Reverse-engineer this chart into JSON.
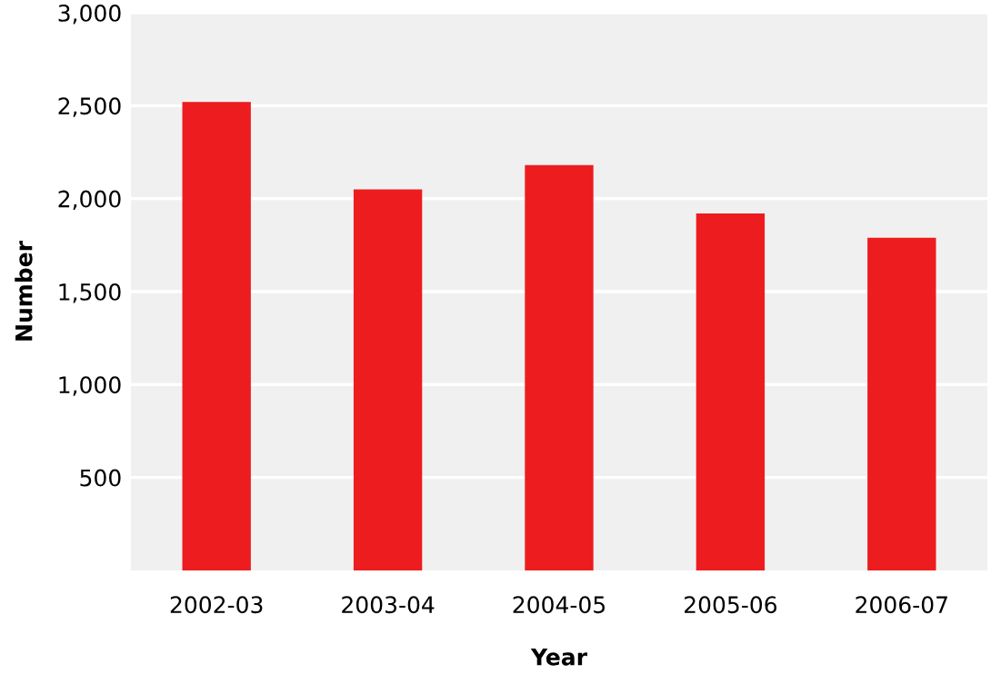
{
  "chart_data": {
    "type": "bar",
    "xlabel": "Year",
    "ylabel": "Number",
    "categories": [
      "2002-03",
      "2003-04",
      "2004-05",
      "2005-06",
      "2006-07"
    ],
    "values": [
      2520,
      2050,
      2180,
      1920,
      1790
    ],
    "color": "#ed1c1f",
    "ylim": [
      0,
      3000
    ],
    "yticks": [
      500,
      {
        "value": 1000,
        "label": "1,000"
      },
      {
        "value": 1500,
        "label": "1,500"
      },
      {
        "value": 2000,
        "label": "2,000"
      },
      {
        "value": 2500,
        "label": "2,500"
      },
      {
        "value": 3000,
        "label": "3,000"
      }
    ],
    "grid": "y"
  }
}
